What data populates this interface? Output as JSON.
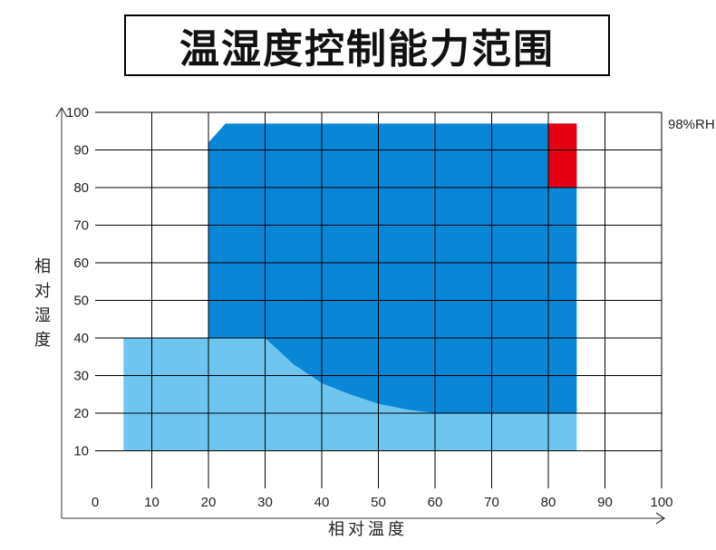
{
  "title": "温湿度控制能力范围",
  "chart_data": {
    "type": "area",
    "xlabel": "相对温度",
    "ylabel": "相对湿度",
    "xlim": [
      0,
      100
    ],
    "ylim": [
      0,
      100
    ],
    "x_ticks": [
      "0",
      "10",
      "20",
      "30",
      "40",
      "50",
      "60",
      "70",
      "80",
      "90",
      "100"
    ],
    "y_ticks": [
      "10",
      "20",
      "30",
      "40",
      "50",
      "60",
      "70",
      "80",
      "90",
      "100"
    ],
    "grid": true,
    "annotation": "98%RH",
    "colors": {
      "light_region": "#6ec6f0",
      "dark_region": "#0a86d6",
      "red_region": "#e60012",
      "grid": "#000000"
    },
    "regions": [
      {
        "color_key": "light_region",
        "points": [
          [
            5,
            10
          ],
          [
            85,
            10
          ],
          [
            85,
            40
          ],
          [
            5,
            40
          ]
        ]
      },
      {
        "color_key": "dark_region",
        "points": [
          [
            20,
            40
          ],
          [
            30,
            40
          ],
          [
            35,
            33
          ],
          [
            40,
            28
          ],
          [
            45,
            25
          ],
          [
            50,
            22.5
          ],
          [
            55,
            21
          ],
          [
            60,
            20
          ],
          [
            85,
            20
          ],
          [
            85,
            97
          ],
          [
            23,
            97
          ],
          [
            20,
            92
          ]
        ]
      },
      {
        "color_key": "red_region",
        "points": [
          [
            80,
            80
          ],
          [
            80,
            97
          ],
          [
            85,
            97
          ],
          [
            85,
            80
          ]
        ]
      }
    ]
  }
}
